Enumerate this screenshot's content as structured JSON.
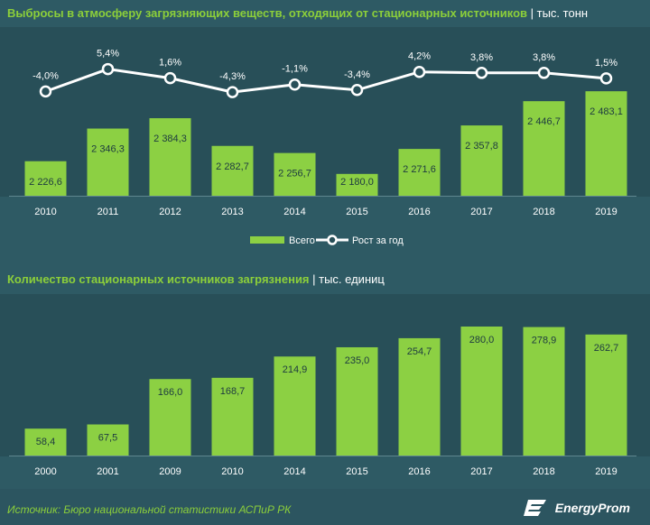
{
  "colors": {
    "background": "#2e5a64",
    "background_dark": "#284f58",
    "bar": "#8cd043",
    "bar_dark": "#6fae2f",
    "line": "#ffffff",
    "title": "#8ccf3a",
    "text": "#ffffff"
  },
  "chart1": {
    "title": "Выбросы в атмосферу загрязняющих веществ, отходящих от стационарных источников",
    "unit": "| тыс. тонн"
  },
  "chart2": {
    "title": "Количество стационарных источников загрязнения",
    "unit": "| тыс. единиц"
  },
  "chart_data": [
    {
      "type": "bar",
      "categories": [
        "2010",
        "2011",
        "2012",
        "2013",
        "2014",
        "2015",
        "2016",
        "2017",
        "2018",
        "2019"
      ],
      "series": [
        {
          "name": "Всего",
          "values": [
            2226.6,
            2346.3,
            2384.3,
            2282.7,
            2256.7,
            2180.0,
            2271.6,
            2357.8,
            2446.7,
            2483.1
          ],
          "labels": [
            "2 226,6",
            "2 346,3",
            "2 384,3",
            "2 282,7",
            "2 256,7",
            "2 180,0",
            "2 271,6",
            "2 357,8",
            "2 446,7",
            "2 483,1"
          ]
        },
        {
          "name": "Рост за год",
          "type": "line",
          "values": [
            -4.0,
            5.4,
            1.6,
            -4.3,
            -1.1,
            -3.4,
            4.2,
            3.8,
            3.8,
            1.5
          ],
          "labels": [
            "-4,0%",
            "5,4%",
            "1,6%",
            "-4,3%",
            "-1,1%",
            "-3,4%",
            "4,2%",
            "3,8%",
            "3,8%",
            "1,5%"
          ]
        }
      ],
      "legend": [
        "Всего",
        "Рост за год"
      ],
      "legend_position": "bottom"
    },
    {
      "type": "bar",
      "categories": [
        "2000",
        "2001",
        "2009",
        "2010",
        "2014",
        "2015",
        "2016",
        "2017",
        "2018",
        "2019"
      ],
      "values": [
        58.4,
        67.5,
        166.0,
        168.7,
        214.9,
        235.0,
        254.7,
        280.0,
        278.9,
        262.7
      ],
      "labels": [
        "58,4",
        "67,5",
        "166,0",
        "168,7",
        "214,9",
        "235,0",
        "254,7",
        "280,0",
        "278,9",
        "262,7"
      ]
    }
  ],
  "footer": {
    "source": "Источник: Бюро национальной  статистики АСПиР РК",
    "logo": "EnergyProm"
  }
}
